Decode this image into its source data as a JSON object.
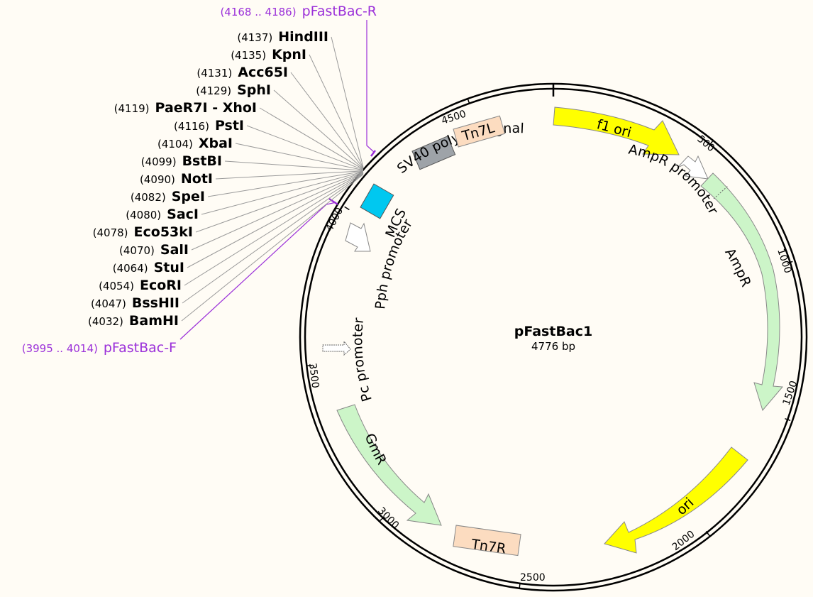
{
  "plasmid": {
    "name": "pFastBac1",
    "length_label": "4776 bp"
  },
  "ticks": [
    "500",
    "1000",
    "1500",
    "2000",
    "2500",
    "3000",
    "3500",
    "4000",
    "4500"
  ],
  "primers": {
    "reverse": {
      "position": "(4168 .. 4186)",
      "name": "pFastBac-R"
    },
    "forward": {
      "position": "(3995 .. 4014)",
      "name": "pFastBac-F"
    }
  },
  "sites": [
    {
      "position": "(4137)",
      "name": "HindIII"
    },
    {
      "position": "(4135)",
      "name": "KpnI"
    },
    {
      "position": "(4131)",
      "name": "Acc65I"
    },
    {
      "position": "(4129)",
      "name": "SphI"
    },
    {
      "position": "(4119)",
      "name": "PaeR7I - XhoI"
    },
    {
      "position": "(4116)",
      "name": "PstI"
    },
    {
      "position": "(4104)",
      "name": "XbaI"
    },
    {
      "position": "(4099)",
      "name": "BstBI"
    },
    {
      "position": "(4090)",
      "name": "NotI"
    },
    {
      "position": "(4082)",
      "name": "SpeI"
    },
    {
      "position": "(4080)",
      "name": "SacI"
    },
    {
      "position": "(4078)",
      "name": "Eco53kI"
    },
    {
      "position": "(4070)",
      "name": "SalI"
    },
    {
      "position": "(4064)",
      "name": "StuI"
    },
    {
      "position": "(4054)",
      "name": "EcoRI"
    },
    {
      "position": "(4047)",
      "name": "BssHII"
    },
    {
      "position": "(4032)",
      "name": "BamHI"
    }
  ],
  "features": {
    "f1_ori": "f1 ori",
    "ampr_promoter": "AmpR promoter",
    "ampr": "AmpR",
    "ori": "ori",
    "tn7r": "Tn7R",
    "gmr": "GmR",
    "pc_promoter": "Pc promoter",
    "pph_promoter": "Pph promoter",
    "mcs": "MCS",
    "sv40": "SV40 poly(A) signal",
    "tn7l": "Tn7L"
  },
  "colors": {
    "primer": "#9b30d9",
    "f1_ori": "#ffff00",
    "ori": "#ffff00",
    "resistance": "#ccf5c8",
    "tn7": "#fcdcc0",
    "mcs": "#00c8f0",
    "sv40": "#9ea3a8",
    "promoter": "#ffffff",
    "background": "#fffcf5"
  }
}
